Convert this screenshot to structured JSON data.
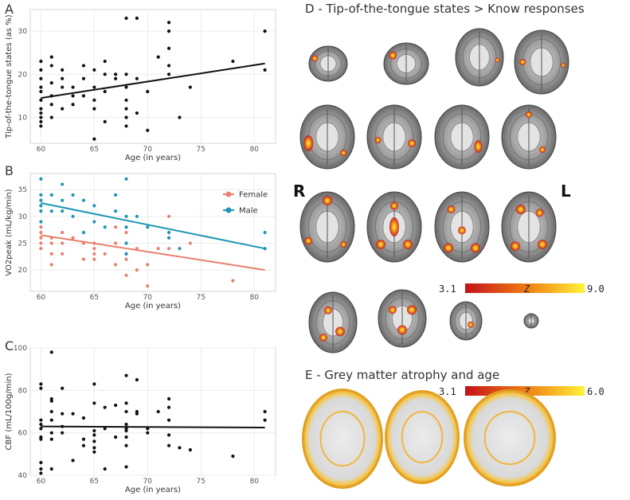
{
  "chart_data": [
    {
      "panel": "A",
      "type": "scatter",
      "xlabel": "Age (in years)",
      "ylabel": "Tip-of-the-tongue states (as %)",
      "xlim": [
        59,
        82
      ],
      "ylim": [
        4,
        35
      ],
      "xticks": [
        60,
        65,
        70,
        75,
        80
      ],
      "yticks": [
        10,
        20,
        30
      ],
      "grid": true,
      "series": [
        {
          "points": [
            [
              60,
              23
            ],
            [
              60,
              21
            ],
            [
              60,
              19
            ],
            [
              60,
              17
            ],
            [
              60,
              16
            ],
            [
              60,
              14
            ],
            [
              60,
              12
            ],
            [
              60,
              11
            ],
            [
              60,
              10
            ],
            [
              60,
              9
            ],
            [
              60,
              8
            ],
            [
              61,
              24
            ],
            [
              61,
              22
            ],
            [
              61,
              18
            ],
            [
              61,
              15
            ],
            [
              61,
              13
            ],
            [
              61,
              10
            ],
            [
              62,
              21
            ],
            [
              62,
              19
            ],
            [
              62,
              17
            ],
            [
              62,
              12
            ],
            [
              63,
              17
            ],
            [
              63,
              15
            ],
            [
              63,
              13
            ],
            [
              64,
              22
            ],
            [
              64,
              19
            ],
            [
              64,
              15
            ],
            [
              65,
              21
            ],
            [
              65,
              17
            ],
            [
              65,
              14
            ],
            [
              65,
              12
            ],
            [
              65,
              5
            ],
            [
              66,
              23
            ],
            [
              66,
              20
            ],
            [
              66,
              16
            ],
            [
              66,
              9
            ],
            [
              67,
              20
            ],
            [
              67,
              19
            ],
            [
              68,
              33
            ],
            [
              68,
              20
            ],
            [
              68,
              17
            ],
            [
              68,
              14
            ],
            [
              68,
              12
            ],
            [
              68,
              10
            ],
            [
              68,
              8
            ],
            [
              69,
              33
            ],
            [
              69,
              19
            ],
            [
              69,
              11
            ],
            [
              70,
              16
            ],
            [
              70,
              7
            ],
            [
              71,
              24
            ],
            [
              72,
              32
            ],
            [
              72,
              30
            ],
            [
              72,
              26
            ],
            [
              72,
              22
            ],
            [
              72,
              20
            ],
            [
              73,
              10
            ],
            [
              74,
              17
            ],
            [
              78,
              23
            ],
            [
              81,
              30
            ],
            [
              81,
              21
            ]
          ]
        }
      ],
      "trend": [
        [
          60,
          14.5
        ],
        [
          81,
          22.5
        ]
      ]
    },
    {
      "panel": "B",
      "type": "scatter",
      "xlabel": "Age (in years)",
      "ylabel": "VO2peak (mL/kg/min)",
      "xlim": [
        59,
        82
      ],
      "ylim": [
        16,
        38
      ],
      "xticks": [
        60,
        65,
        70,
        75,
        80
      ],
      "yticks": [
        20,
        25,
        30,
        35
      ],
      "grid": true,
      "legend_position": "right",
      "series": [
        {
          "name": "Female",
          "color": "#e8806f",
          "points": [
            [
              60,
              28
            ],
            [
              60,
              27
            ],
            [
              60,
              26
            ],
            [
              60,
              25
            ],
            [
              60,
              24
            ],
            [
              61,
              26
            ],
            [
              61,
              25
            ],
            [
              61,
              23
            ],
            [
              61,
              21
            ],
            [
              62,
              27
            ],
            [
              62,
              25
            ],
            [
              62,
              23
            ],
            [
              63,
              26
            ],
            [
              64,
              25
            ],
            [
              64,
              22
            ],
            [
              65,
              25
            ],
            [
              65,
              24
            ],
            [
              65,
              23
            ],
            [
              65,
              22
            ],
            [
              66,
              23
            ],
            [
              67,
              28
            ],
            [
              67,
              25
            ],
            [
              67,
              21
            ],
            [
              68,
              28
            ],
            [
              68,
              27
            ],
            [
              68,
              25
            ],
            [
              68,
              23
            ],
            [
              68,
              22
            ],
            [
              68,
              19
            ],
            [
              69,
              24
            ],
            [
              69,
              20
            ],
            [
              70,
              21
            ],
            [
              70,
              17
            ],
            [
              71,
              24
            ],
            [
              72,
              30
            ],
            [
              72,
              27
            ],
            [
              72,
              24
            ],
            [
              74,
              25
            ],
            [
              78,
              18
            ],
            [
              81,
              24
            ]
          ],
          "trend": [
            [
              60,
              26.5
            ],
            [
              81,
              20
            ]
          ]
        },
        {
          "name": "Male",
          "color": "#1d96b5",
          "points": [
            [
              60,
              37
            ],
            [
              60,
              34
            ],
            [
              60,
              33
            ],
            [
              60,
              32
            ],
            [
              60,
              31
            ],
            [
              60,
              29
            ],
            [
              61,
              34
            ],
            [
              61,
              31
            ],
            [
              62,
              36
            ],
            [
              62,
              33
            ],
            [
              62,
              31
            ],
            [
              63,
              34
            ],
            [
              63,
              30
            ],
            [
              64,
              33
            ],
            [
              64,
              27
            ],
            [
              65,
              32
            ],
            [
              65,
              29
            ],
            [
              66,
              28
            ],
            [
              67,
              34
            ],
            [
              67,
              31
            ],
            [
              68,
              37
            ],
            [
              68,
              30
            ],
            [
              68,
              28
            ],
            [
              68,
              25
            ],
            [
              68,
              23
            ],
            [
              69,
              30
            ],
            [
              70,
              28
            ],
            [
              72,
              27
            ],
            [
              72,
              26
            ],
            [
              73,
              24
            ],
            [
              81,
              27
            ],
            [
              81,
              24
            ]
          ],
          "trend": [
            [
              60,
              32.5
            ],
            [
              81,
              24
            ]
          ]
        }
      ]
    },
    {
      "panel": "C",
      "type": "scatter",
      "xlabel": "Age (in years)",
      "ylabel": "CBF (mL/100g/min)",
      "xlim": [
        59,
        82
      ],
      "ylim": [
        40,
        100
      ],
      "xticks": [
        60,
        65,
        70,
        75,
        80
      ],
      "yticks": [
        40,
        60,
        80,
        100
      ],
      "grid": true,
      "series": [
        {
          "points": [
            [
              60,
              83
            ],
            [
              60,
              81
            ],
            [
              60,
              66
            ],
            [
              60,
              64
            ],
            [
              60,
              62
            ],
            [
              60,
              58
            ],
            [
              60,
              57
            ],
            [
              60,
              46
            ],
            [
              60,
              43
            ],
            [
              60,
              41
            ],
            [
              61,
              98
            ],
            [
              61,
              76
            ],
            [
              61,
              75
            ],
            [
              61,
              70
            ],
            [
              61,
              66
            ],
            [
              61,
              60
            ],
            [
              61,
              57
            ],
            [
              61,
              43
            ],
            [
              62,
              81
            ],
            [
              62,
              69
            ],
            [
              62,
              63
            ],
            [
              62,
              60
            ],
            [
              63,
              69
            ],
            [
              63,
              47
            ],
            [
              64,
              67
            ],
            [
              64,
              57
            ],
            [
              64,
              54
            ],
            [
              65,
              83
            ],
            [
              65,
              74
            ],
            [
              65,
              61
            ],
            [
              65,
              59
            ],
            [
              65,
              56
            ],
            [
              65,
              53
            ],
            [
              65,
              51
            ],
            [
              66,
              72
            ],
            [
              66,
              62
            ],
            [
              66,
              43
            ],
            [
              67,
              73
            ],
            [
              67,
              58
            ],
            [
              68,
              87
            ],
            [
              68,
              74
            ],
            [
              68,
              70
            ],
            [
              68,
              64
            ],
            [
              68,
              62
            ],
            [
              68,
              61
            ],
            [
              68,
              58
            ],
            [
              68,
              54
            ],
            [
              68,
              44
            ],
            [
              69,
              85
            ],
            [
              69,
              70
            ],
            [
              69,
              69
            ],
            [
              70,
              62
            ],
            [
              70,
              60
            ],
            [
              71,
              70
            ],
            [
              72,
              76
            ],
            [
              72,
              72
            ],
            [
              72,
              66
            ],
            [
              72,
              59
            ],
            [
              72,
              54
            ],
            [
              73,
              53
            ],
            [
              74,
              52
            ],
            [
              78,
              49
            ],
            [
              81,
              70
            ],
            [
              81,
              66
            ]
          ]
        }
      ],
      "trend": [
        [
          60,
          63
        ],
        [
          81,
          62.5
        ]
      ]
    }
  ],
  "labels": {
    "panel_a": "A",
    "panel_b": "B",
    "panel_c": "C",
    "panel_d_title": "D - Tip-of-the-tongue states > Know responses",
    "panel_e_title": "E - Grey matter atrophy and age",
    "side_r": "R",
    "side_l": "L",
    "cbar_d_min": "3.1",
    "cbar_d_mid": "Z",
    "cbar_d_max": "9.0",
    "cbar_e_min": "3.1",
    "cbar_e_mid": "Z",
    "cbar_e_max": "6.0"
  },
  "colors": {
    "heat_low": "#c4121a",
    "heat_mid": "#ef7a12",
    "heat_high": "#fff23a"
  }
}
